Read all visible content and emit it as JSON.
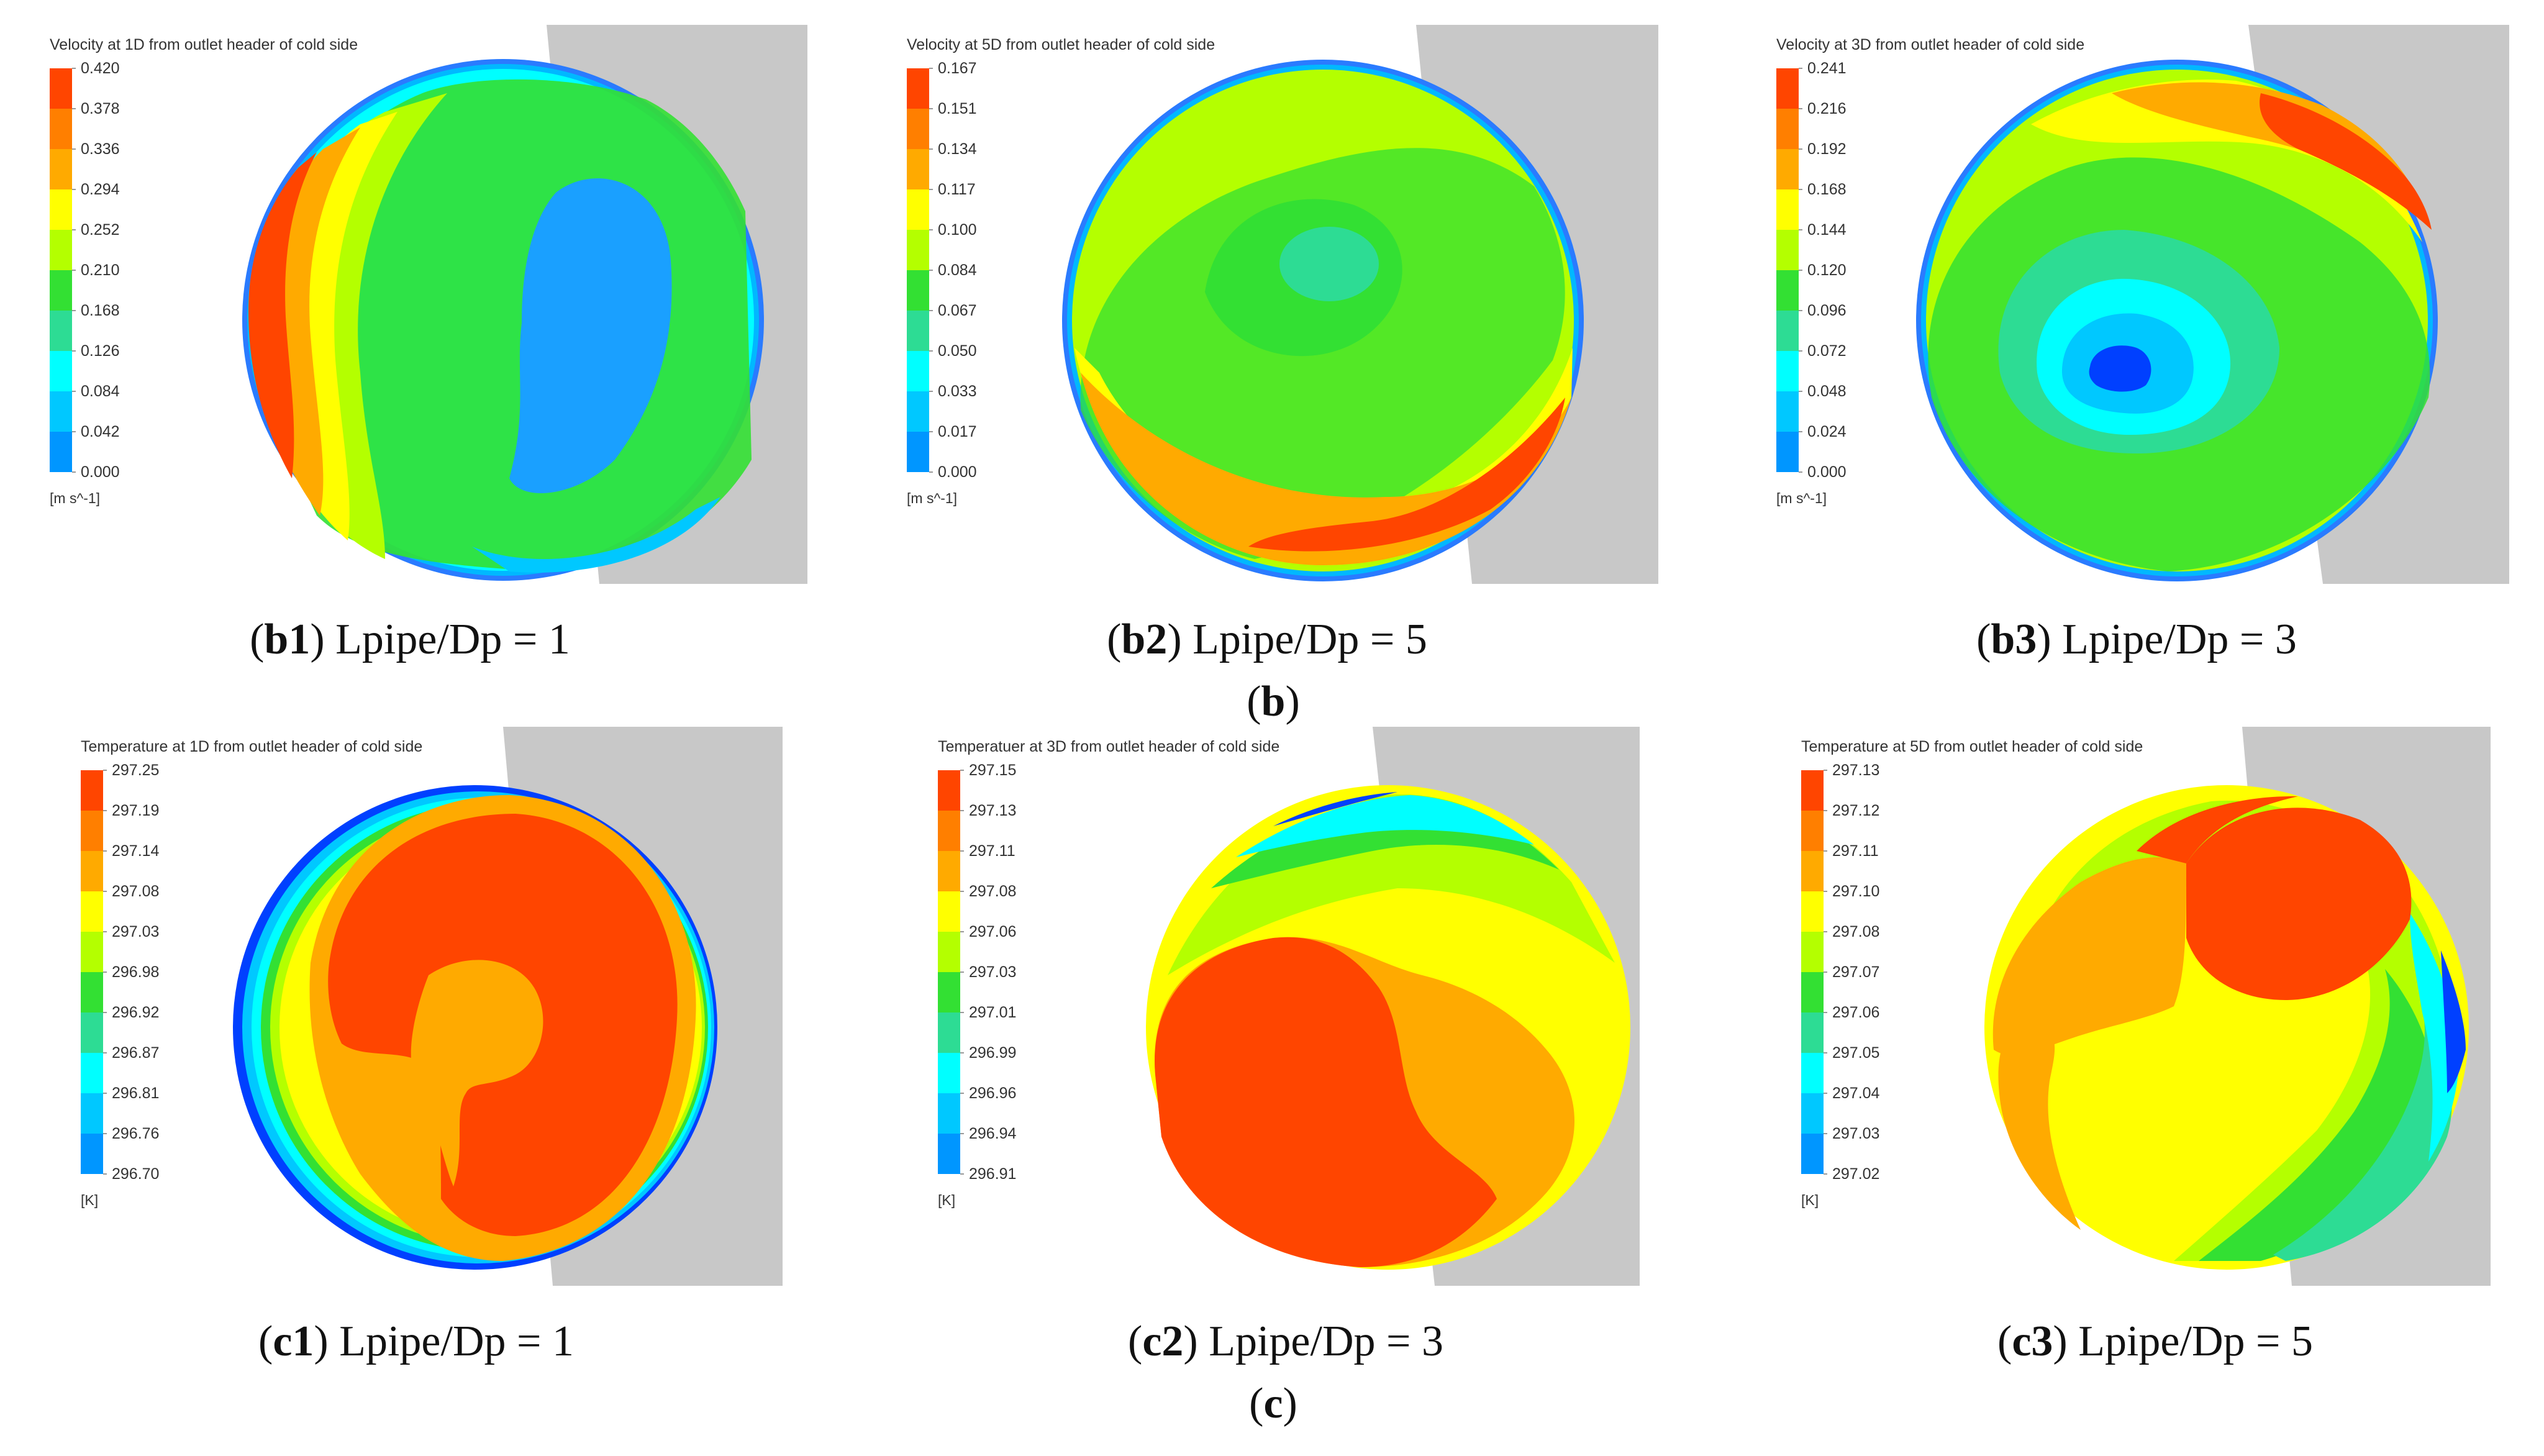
{
  "groups": [
    {
      "group_label": "b",
      "panels": [
        {
          "id": "b1",
          "title": "Velocity at 1D from outlet header of cold side",
          "unit": "[m s^-1]",
          "ticks": [
            "0.420",
            "0.378",
            "0.336",
            "0.294",
            "0.252",
            "0.210",
            "0.168",
            "0.126",
            "0.084",
            "0.042",
            "0.000"
          ],
          "caption_prefix": "(",
          "caption_id": "b1",
          "caption_rest": ") Lpipe/Dp = 1"
        },
        {
          "id": "b2",
          "title": "Velocity at 5D from outlet header of cold side",
          "unit": "[m s^-1]",
          "ticks": [
            "0.167",
            "0.151",
            "0.134",
            "0.117",
            "0.100",
            "0.084",
            "0.067",
            "0.050",
            "0.033",
            "0.017",
            "0.000"
          ],
          "caption_prefix": "(",
          "caption_id": "b2",
          "caption_rest": ") Lpipe/Dp = 5"
        },
        {
          "id": "b3",
          "title": "Velocity at 3D from outlet header of cold side",
          "unit": "[m s^-1]",
          "ticks": [
            "0.241",
            "0.216",
            "0.192",
            "0.168",
            "0.144",
            "0.120",
            "0.096",
            "0.072",
            "0.048",
            "0.024",
            "0.000"
          ],
          "caption_prefix": "(",
          "caption_id": "b3",
          "caption_rest": ") Lpipe/Dp = 3"
        }
      ]
    },
    {
      "group_label": "c",
      "panels": [
        {
          "id": "c1",
          "title": "Temperature at 1D from outlet header of cold side",
          "unit": "[K]",
          "ticks": [
            "297.25",
            "297.19",
            "297.14",
            "297.08",
            "297.03",
            "296.98",
            "296.92",
            "296.87",
            "296.81",
            "296.76",
            "296.70"
          ],
          "caption_prefix": "(",
          "caption_id": "c1",
          "caption_rest": ") Lpipe/Dp = 1"
        },
        {
          "id": "c2",
          "title": "Temperatuer at 3D from outlet header of cold side",
          "unit": "[K]",
          "ticks": [
            "297.15",
            "297.13",
            "297.11",
            "297.08",
            "297.06",
            "297.03",
            "297.01",
            "296.99",
            "296.96",
            "296.94",
            "296.91"
          ],
          "caption_prefix": "(",
          "caption_id": "c2",
          "caption_rest": ") Lpipe/Dp = 3"
        },
        {
          "id": "c3",
          "title": "Temperature at 5D from outlet header of cold side",
          "unit": "[K]",
          "ticks": [
            "297.13",
            "297.12",
            "297.11",
            "297.10",
            "297.08",
            "297.07",
            "297.06",
            "297.05",
            "297.04",
            "297.03",
            "297.02"
          ],
          "caption_prefix": "(",
          "caption_id": "c3",
          "caption_rest": ") Lpipe/Dp = 5"
        }
      ]
    }
  ],
  "colors": {
    "legend_levels": [
      "#ff4500",
      "#ff7f00",
      "#ffaa00",
      "#ffff00",
      "#b4ff00",
      "#33e033",
      "#2ddc94",
      "#00ffff",
      "#00c8ff",
      "#0096ff",
      "#0040ff"
    ],
    "geometry_gray": "#c8c8c8",
    "text": "#333333"
  }
}
